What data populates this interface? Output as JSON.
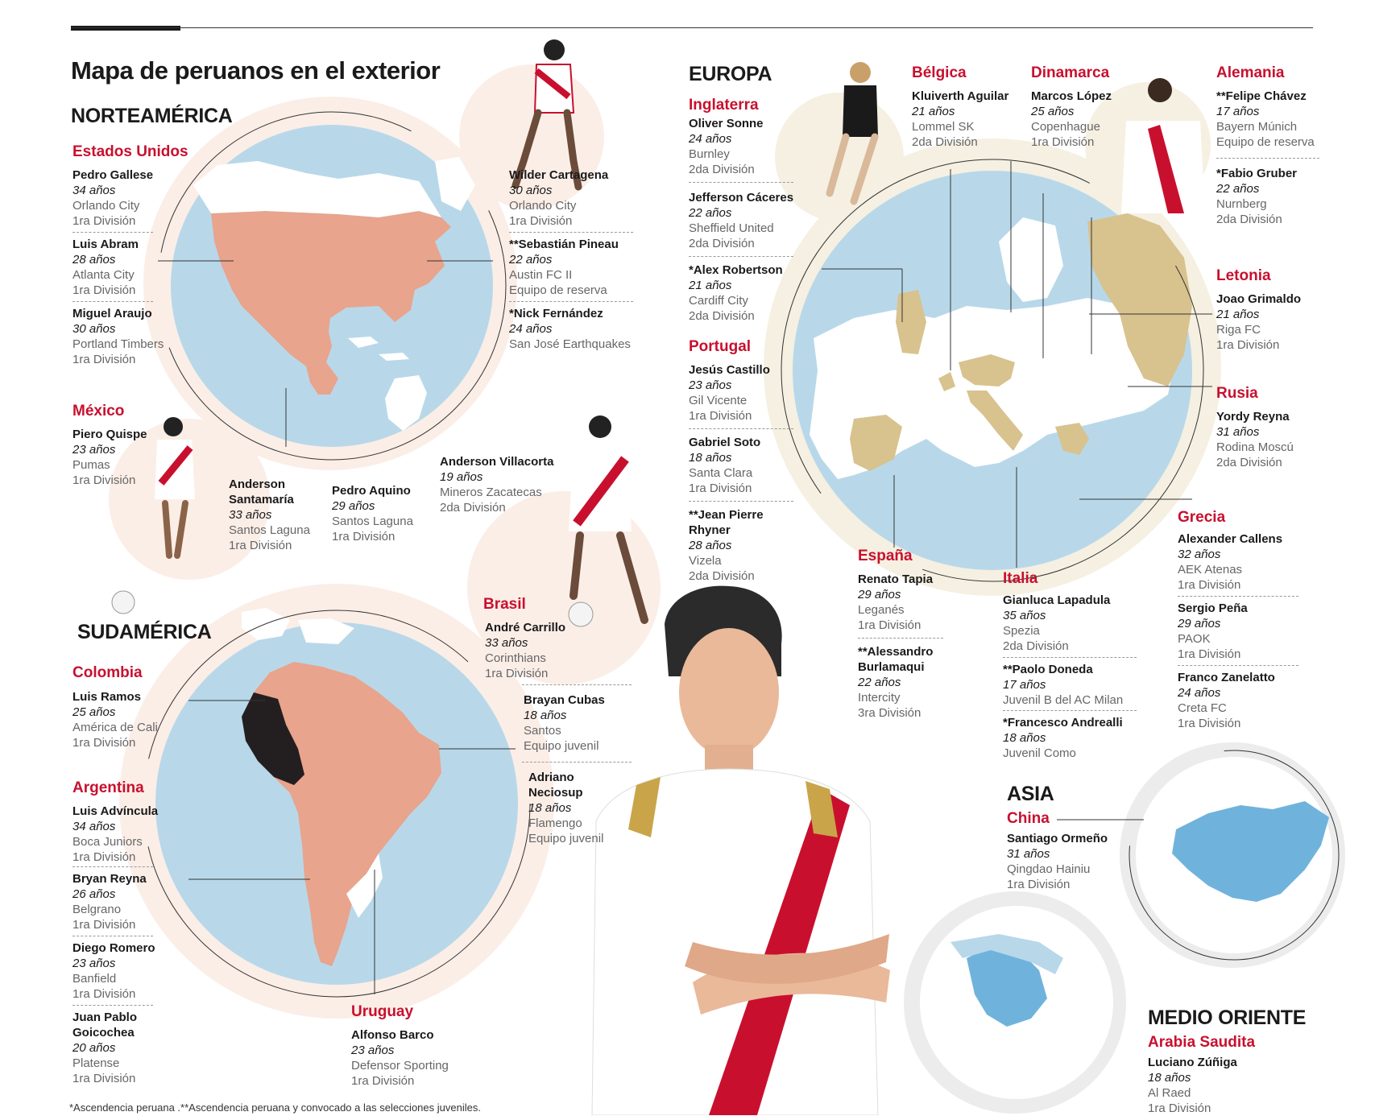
{
  "title": "Mapa de peruanos en el exterior",
  "footnote": "*Ascendencia peruana .**Ascendencia peruana y convocado a las selecciones juveniles.",
  "colors": {
    "accent_red": "#c8102e",
    "ocean_blue": "#b8d8ea",
    "americas_land": "#e8a48c",
    "peru": "#231f20",
    "europe_land": "#d8c28e",
    "asia_blue": "#6fb3dd",
    "circle_tint_pink": "#fbeee7",
    "circle_tint_beige": "#f5f0e1",
    "circle_tint_grey": "#ececec"
  },
  "icons": [
    "globe-north-america-map",
    "globe-south-america-map",
    "globe-europe-map",
    "globe-china-map",
    "globe-middle-east-map",
    "player-photo",
    "coach-photo",
    "football-icon"
  ],
  "regions": {
    "norteamerica": "NORTEAMÉRICA",
    "sudamerica": "SUDAMÉRICA",
    "europa": "EUROPA",
    "asia": "ASIA",
    "medio_oriente": "MEDIO ORIENTE"
  },
  "countries": {
    "usa": {
      "name": "Estados Unidos",
      "players": [
        {
          "name": "Pedro Gallese",
          "age": "34 años",
          "club": "Orlando City",
          "division": "1ra División"
        },
        {
          "name": "Luis Abram",
          "age": "28 años",
          "club": "Atlanta City",
          "division": "1ra División"
        },
        {
          "name": "Miguel Araujo",
          "age": "30 años",
          "club": "Portland Timbers",
          "division": "1ra División"
        },
        {
          "name": "Wilder Cartagena",
          "age": "30 años",
          "club": "Orlando City",
          "division": "1ra División"
        },
        {
          "name": "**Sebastián Pineau",
          "age": "22 años",
          "club": "Austin FC II",
          "division": "Equipo de reserva"
        },
        {
          "name": "*Nick Fernández",
          "age": "24 años",
          "club": "San José Earthquakes",
          "division": ""
        }
      ]
    },
    "mexico": {
      "name": "México",
      "players": [
        {
          "name": "Piero Quispe",
          "age": "23 años",
          "club": "Pumas",
          "division": "1ra División"
        },
        {
          "name": "Anderson Santamaría",
          "age": "33 años",
          "club": "Santos Laguna",
          "division": "1ra División"
        },
        {
          "name": "Pedro Aquino",
          "age": "29 años",
          "club": "Santos Laguna",
          "division": "1ra División"
        },
        {
          "name": "Anderson Villacorta",
          "age": "19 años",
          "club": "Mineros Zacatecas",
          "division": "2da División"
        }
      ]
    },
    "colombia": {
      "name": "Colombia",
      "players": [
        {
          "name": "Luis Ramos",
          "age": "25 años",
          "club": "América de Cali",
          "division": "1ra División"
        }
      ]
    },
    "argentina": {
      "name": "Argentina",
      "players": [
        {
          "name": "Luis Advíncula",
          "age": "34 años",
          "club": "Boca Juniors",
          "division": "1ra División"
        },
        {
          "name": "Bryan Reyna",
          "age": "26 años",
          "club": "Belgrano",
          "division": "1ra División"
        },
        {
          "name": "Diego Romero",
          "age": "23 años",
          "club": "Banfield",
          "division": "1ra División"
        },
        {
          "name": "Juan Pablo Goicochea",
          "age": "20 años",
          "club": "Platense",
          "division": "1ra División"
        }
      ]
    },
    "brasil": {
      "name": "Brasil",
      "players": [
        {
          "name": "André Carrillo",
          "age": "33 años",
          "club": "Corinthians",
          "division": "1ra División"
        },
        {
          "name": "Brayan Cubas",
          "age": "18 años",
          "club": "Santos",
          "division": "Equipo juvenil"
        },
        {
          "name": "Adriano Neciosup",
          "age": "18 años",
          "club": "Flamengo",
          "division": "Equipo juvenil"
        }
      ]
    },
    "uruguay": {
      "name": "Uruguay",
      "players": [
        {
          "name": "Alfonso Barco",
          "age": "23 años",
          "club": "Defensor Sporting",
          "division": "1ra División"
        }
      ]
    },
    "inglaterra": {
      "name": "Inglaterra",
      "players": [
        {
          "name": "Oliver Sonne",
          "age": "24 años",
          "club": "Burnley",
          "division": "2da División"
        },
        {
          "name": "Jefferson Cáceres",
          "age": "22 años",
          "club": "Sheffield United",
          "division": "2da División"
        },
        {
          "name": "*Alex Robertson",
          "age": "21 años",
          "club": "Cardiff City",
          "division": "2da División"
        }
      ]
    },
    "portugal": {
      "name": "Portugal",
      "players": [
        {
          "name": "Jesús Castillo",
          "age": "23 años",
          "club": "Gil Vicente",
          "division": "1ra División"
        },
        {
          "name": "Gabriel Soto",
          "age": "18 años",
          "club": "Santa Clara",
          "division": "1ra División"
        },
        {
          "name": "**Jean Pierre Rhyner",
          "age": "28 años",
          "club": "Vizela",
          "division": "2da División"
        }
      ]
    },
    "belgica": {
      "name": "Bélgica",
      "players": [
        {
          "name": "Kluiverth Aguilar",
          "age": "21 años",
          "club": "Lommel SK",
          "division": "2da División"
        }
      ]
    },
    "dinamarca": {
      "name": "Dinamarca",
      "players": [
        {
          "name": "Marcos López",
          "age": "25 años",
          "club": "Copenhague",
          "division": "1ra División"
        }
      ]
    },
    "alemania": {
      "name": "Alemania",
      "players": [
        {
          "name": "**Felipe Chávez",
          "age": "17 años",
          "club": "Bayern Múnich",
          "division": "Equipo de reserva"
        },
        {
          "name": "*Fabio Gruber",
          "age": "22 años",
          "club": "Nurnberg",
          "division": "2da División"
        }
      ]
    },
    "letonia": {
      "name": "Letonia",
      "players": [
        {
          "name": "Joao Grimaldo",
          "age": "21 años",
          "club": "Riga FC",
          "division": "1ra División"
        }
      ]
    },
    "rusia": {
      "name": "Rusia",
      "players": [
        {
          "name": "Yordy Reyna",
          "age": "31 años",
          "club": "Rodina Moscú",
          "division": "2da División"
        }
      ]
    },
    "grecia": {
      "name": "Grecia",
      "players": [
        {
          "name": "Alexander Callens",
          "age": "32 años",
          "club": "AEK Atenas",
          "division": "1ra División"
        },
        {
          "name": "Sergio Peña",
          "age": "29 años",
          "club": "PAOK",
          "division": "1ra División"
        },
        {
          "name": "Franco Zanelatto",
          "age": "24 años",
          "club": "Creta FC",
          "division": "1ra División"
        }
      ]
    },
    "espana": {
      "name": "España",
      "players": [
        {
          "name": "Renato Tapia",
          "age": "29 años",
          "club": "Leganés",
          "division": "1ra División"
        },
        {
          "name": "**Alessandro Burlamaqui",
          "age": "22 años",
          "club": "Intercity",
          "division": "3ra División"
        }
      ]
    },
    "italia": {
      "name": "Italia",
      "players": [
        {
          "name": "Gianluca Lapadula",
          "age": "35 años",
          "club": "Spezia",
          "division": "2da División"
        },
        {
          "name": "**Paolo Doneda",
          "age": "17 años",
          "club": "Juvenil B del AC Milan",
          "division": ""
        },
        {
          "name": "*Francesco Andrealli",
          "age": "18 años",
          "club": "Juvenil Como",
          "division": ""
        }
      ]
    },
    "china": {
      "name": "China",
      "players": [
        {
          "name": "Santiago Ormeño",
          "age": "31 años",
          "club": "Qingdao Hainiu",
          "division": "1ra División"
        }
      ]
    },
    "arabia": {
      "name": "Arabia Saudita",
      "players": [
        {
          "name": "Luciano Zúñiga",
          "age": "18 años",
          "club": "Al Raed",
          "division": "1ra División"
        }
      ]
    }
  }
}
